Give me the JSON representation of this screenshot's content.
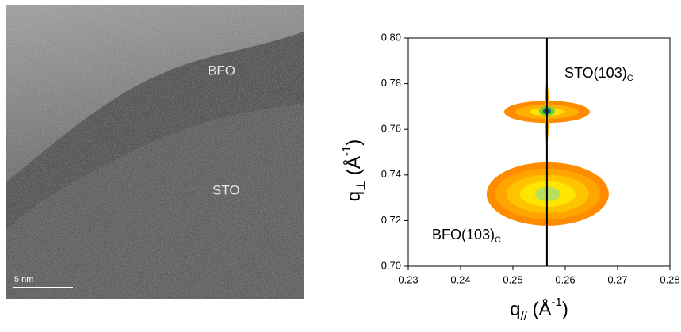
{
  "image_panel": {
    "labels": [
      "BFO",
      "STO"
    ],
    "scale_bar": "5 nm"
  },
  "chart_data": {
    "type": "map",
    "x_label": {
      "base": "q",
      "sub": "//",
      "unit": " (Å",
      "sup": "-1",
      "end": ")"
    },
    "y_label": {
      "base": "q",
      "sub": "⊥",
      "unit": " (Å",
      "sup": "-1",
      "end": ")"
    },
    "xlim": [
      0.23,
      0.28
    ],
    "xticks": [
      0.23,
      0.24,
      0.25,
      0.26,
      0.27,
      0.28
    ],
    "ylim": [
      0.7,
      0.8
    ],
    "yticks": [
      {
        "value": 0.7,
        "label": "0.70"
      },
      0.72,
      0.74,
      0.76,
      0.78,
      {
        "value": 0.8,
        "label": "0.80"
      }
    ],
    "reference_line_x": 0.2565,
    "peaks": [
      {
        "name": "STO(103)",
        "sub": "C",
        "x": 0.2565,
        "y": 0.768
      },
      {
        "name": "BFO(103)",
        "sub": "C",
        "x": 0.2565,
        "y": 0.732
      }
    ]
  }
}
